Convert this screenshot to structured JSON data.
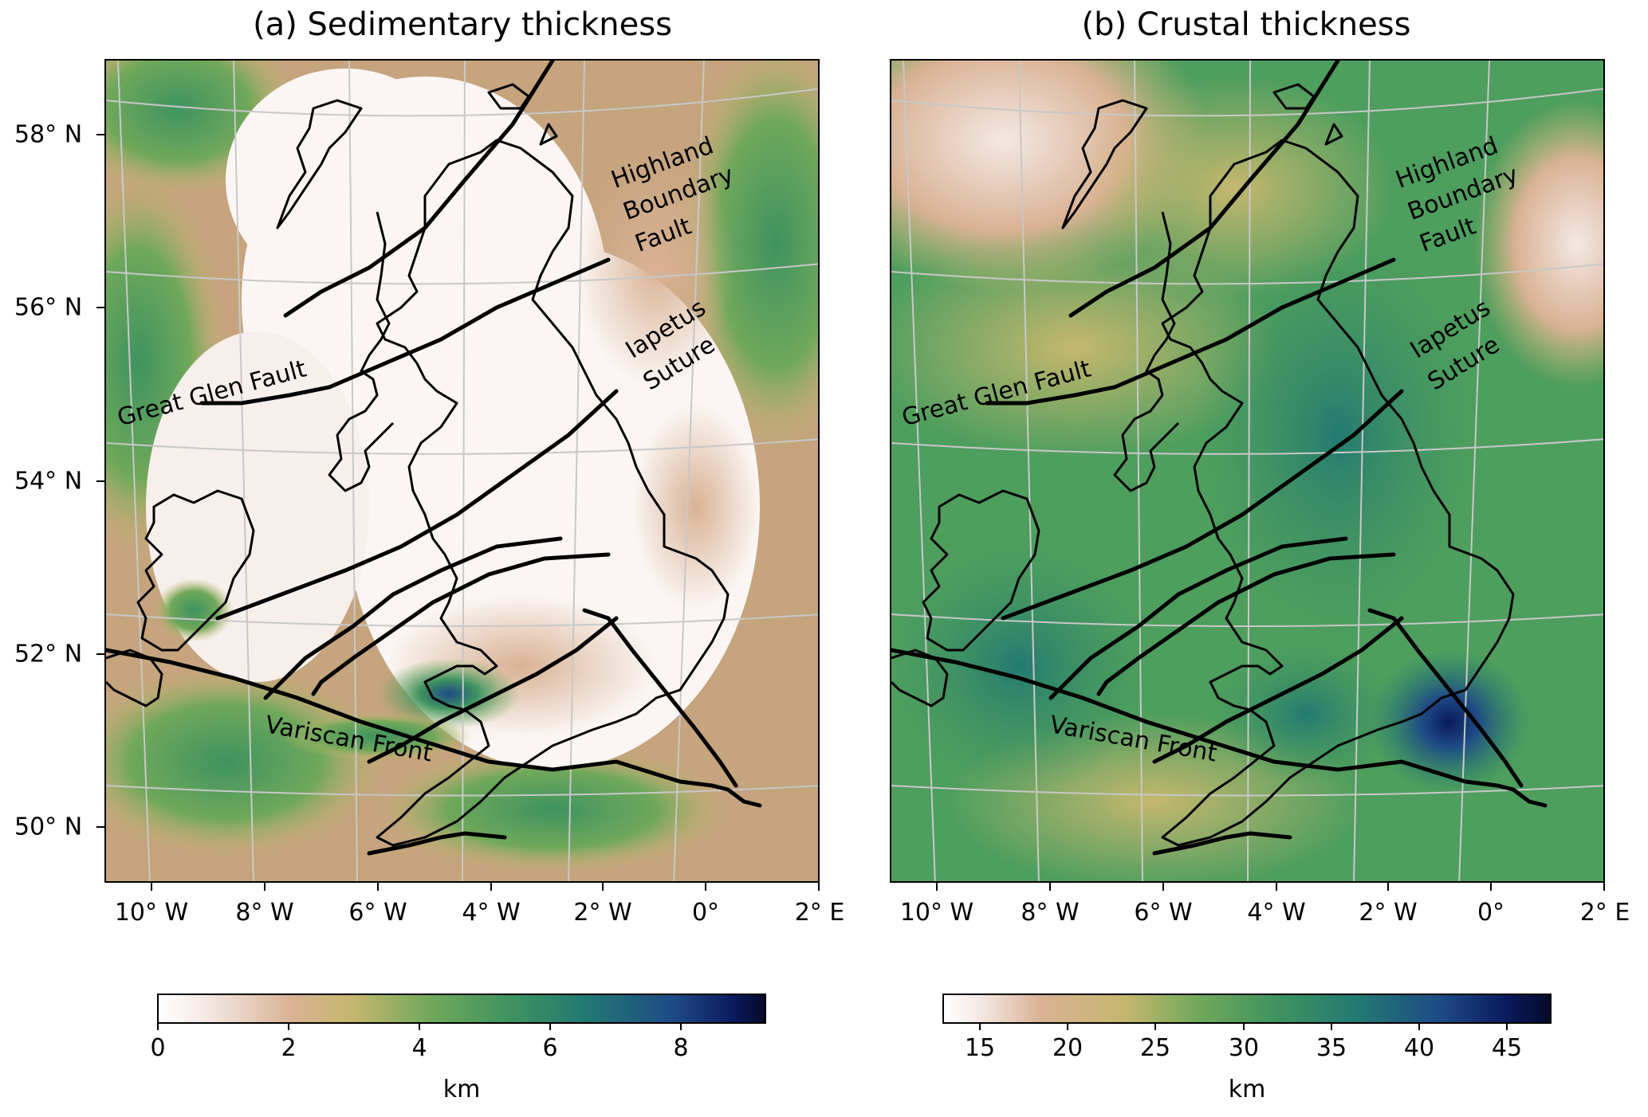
{
  "panels": [
    {
      "title": "(a) Sedimentary thickness",
      "colorbar": {
        "ticks": [
          "0",
          "2",
          "4",
          "6",
          "8"
        ],
        "unit": "km",
        "min": 0,
        "max": 9.3
      }
    },
    {
      "title": "(b) Crustal thickness",
      "colorbar": {
        "ticks": [
          "15",
          "20",
          "25",
          "30",
          "35",
          "40",
          "45"
        ],
        "unit": "km",
        "min": 12.8,
        "max": 47.5
      }
    }
  ],
  "lat_labels": [
    "58° N",
    "56° N",
    "54° N",
    "52° N",
    "50° N"
  ],
  "lon_labels": [
    "10° W",
    "8° W",
    "6° W",
    "4° W",
    "2° W",
    "0°",
    "2° E"
  ],
  "annotations": {
    "highland_1": "Highland",
    "highland_2": "Boundary",
    "highland_3": "Fault",
    "iapetus_1": "Iapetus",
    "iapetus_2": "Suture",
    "great_glen": "Great Glen Fault",
    "variscan": "Variscan Front"
  },
  "colors": {
    "colormap": [
      "#ffffff",
      "#f4e8e4",
      "#d9b294",
      "#c5b76e",
      "#6fa85a",
      "#3f9360",
      "#237a72",
      "#1e4a86",
      "#0a1a5c",
      "#050a2a"
    ],
    "graticule": "#c8c8c8",
    "coastline": "#000000"
  }
}
